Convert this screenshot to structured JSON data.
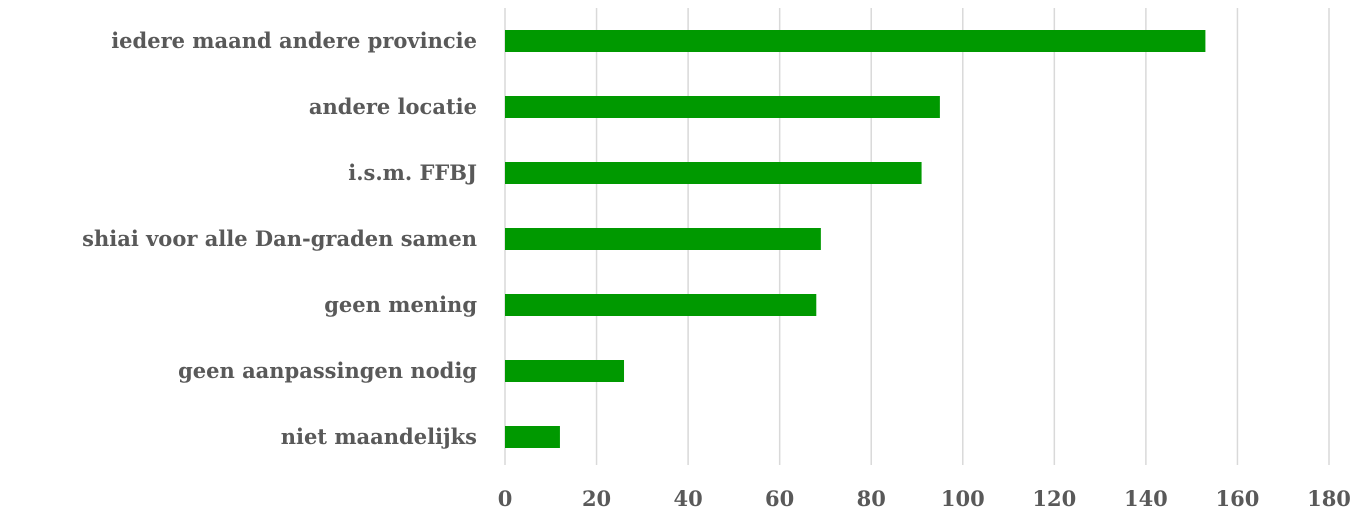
{
  "chart_data": {
    "type": "bar",
    "orientation": "horizontal",
    "categories": [
      "iedere maand andere provincie",
      "andere locatie",
      "i.s.m. FFBJ",
      "shiai voor alle Dan-graden samen",
      "geen mening",
      "geen aanpassingen nodig",
      "niet maandelijks"
    ],
    "values": [
      153,
      95,
      91,
      69,
      68,
      26,
      12
    ],
    "xlim": [
      0,
      180
    ],
    "xticks": [
      "0",
      "20",
      "40",
      "60",
      "80",
      "100",
      "120",
      "140",
      "160",
      "180"
    ],
    "title": "",
    "xlabel": "",
    "ylabel": "",
    "grid": "vertical",
    "legend": "none",
    "bar_color": "#009900",
    "label_color": "#595959",
    "grid_color": "#d9d9d9"
  }
}
